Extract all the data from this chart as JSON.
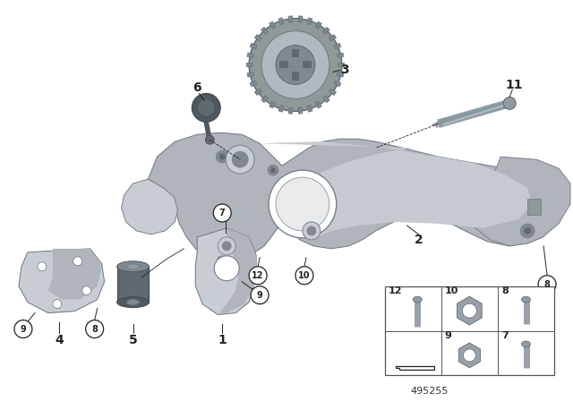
{
  "bg_color": "#ffffff",
  "line_color": "#222222",
  "figure_size": [
    6.4,
    4.48
  ],
  "dpi": 100,
  "part_number": "495255",
  "main_bracket_color": "#b0b5bb",
  "main_bracket_edge": "#7a8088",
  "part_dark": "#808890",
  "part_light": "#c8cdd3",
  "bolt_color": "#9aa0a8"
}
